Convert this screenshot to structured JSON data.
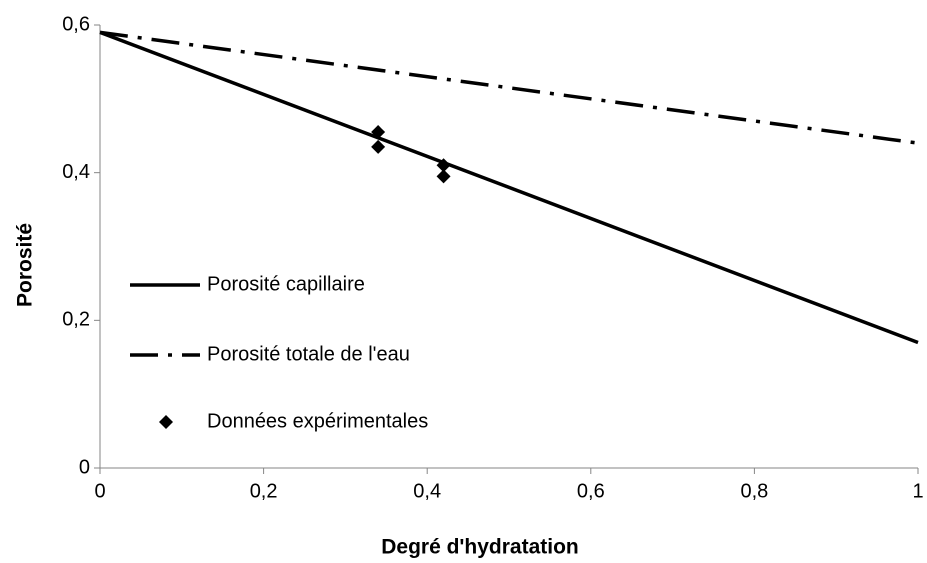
{
  "chart_data": {
    "type": "line",
    "x_label": "Degré d'hydratation",
    "y_label": "Porosité",
    "xlim": [
      0,
      1
    ],
    "ylim": [
      0,
      0.6
    ],
    "xticks": [
      0,
      {
        "value": 0.2,
        "label": "0,2"
      },
      {
        "value": 0.4,
        "label": "0,4"
      },
      {
        "value": 0.6,
        "label": "0,6"
      },
      {
        "value": 0.8,
        "label": "0,8"
      },
      1
    ],
    "yticks": [
      0,
      {
        "value": 0.2,
        "label": "0,2"
      },
      {
        "value": 0.4,
        "label": "0,4"
      },
      {
        "value": 0.6,
        "label": "0,6"
      }
    ],
    "grid": false,
    "legend": "left",
    "series": [
      {
        "name": "Porosité capillaire",
        "color": "#000000",
        "style": "solid",
        "x": [
          0,
          1
        ],
        "values": [
          0.59,
          0.17
        ]
      },
      {
        "name": "Porosité totale de l'eau",
        "color": "#000000",
        "style": "dashdot",
        "x": [
          0,
          1
        ],
        "values": [
          0.59,
          0.44
        ]
      },
      {
        "name": "Données expérimentales",
        "color": "#000000",
        "style": "diamond",
        "x": [
          0.34,
          0.34,
          0.42,
          0.42
        ],
        "values": [
          0.455,
          0.435,
          0.41,
          0.395
        ]
      }
    ]
  }
}
